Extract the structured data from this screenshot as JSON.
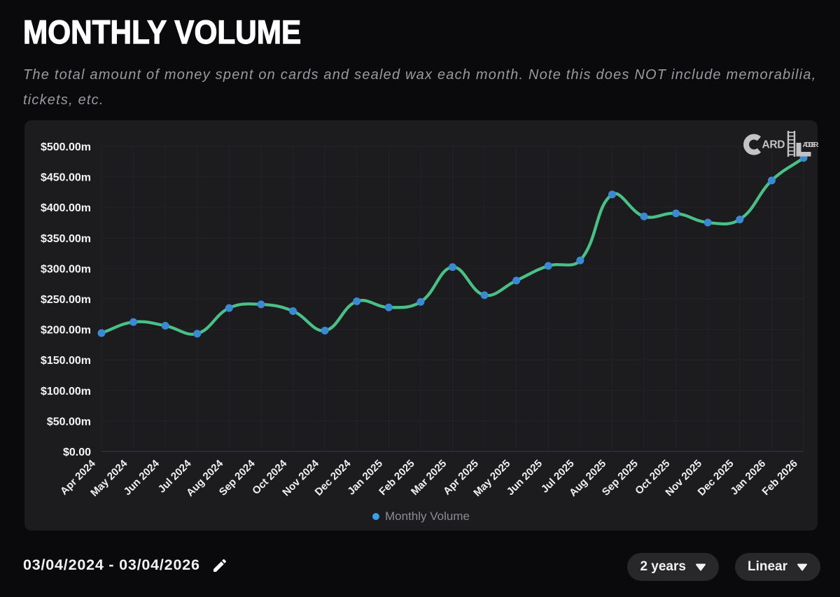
{
  "header": {
    "title": "MONTHLY VOLUME",
    "subtitle_lines": [
      "The total amount of money spent on cards and sealed wax each month. Note this does NOT include memorabilia,",
      "tickets, etc."
    ]
  },
  "chart_data": {
    "type": "line",
    "title": "",
    "categories": [
      "Apr 2024",
      "May 2024",
      "Jun 2024",
      "Jul 2024",
      "Aug 2024",
      "Sep 2024",
      "Oct 2024",
      "Nov 2024",
      "Dec 2024",
      "Jan 2025",
      "Feb 2025",
      "Mar 2025",
      "Apr 2025",
      "May 2025",
      "Jun 2025",
      "Jul 2025",
      "Aug 2025",
      "Sep 2025",
      "Oct 2025",
      "Nov 2025",
      "Dec 2025",
      "Jan 2026",
      "Feb 2026"
    ],
    "series": [
      {
        "name": "Monthly Volume",
        "values": [
          194,
          212,
          206,
          193,
          235,
          241,
          230,
          198,
          246,
          236,
          245,
          302,
          256,
          280,
          304,
          313,
          421,
          385,
          390,
          375,
          380,
          444,
          481
        ]
      }
    ],
    "value_unit": "million USD",
    "ylim": [
      0,
      500
    ],
    "y_tick_step": 50,
    "y_tick_labels": [
      "$0.00",
      "$50.00m",
      "$100.00m",
      "$150.00m",
      "$200.00m",
      "$250.00m",
      "$300.00m",
      "$350.00m",
      "$400.00m",
      "$450.00m",
      "$500.00m"
    ],
    "grid": true,
    "legend_position": "bottom",
    "line_color": "#49c085",
    "point_color": "#3a89d4"
  },
  "legend": {
    "label": "Monthly Volume"
  },
  "logo": {
    "c": "C",
    "ard": "ARD",
    "adder": "ADDER"
  },
  "footer": {
    "date_range": "03/04/2024 - 03/04/2026",
    "range_button": "2 years",
    "scale_button": "Linear"
  }
}
